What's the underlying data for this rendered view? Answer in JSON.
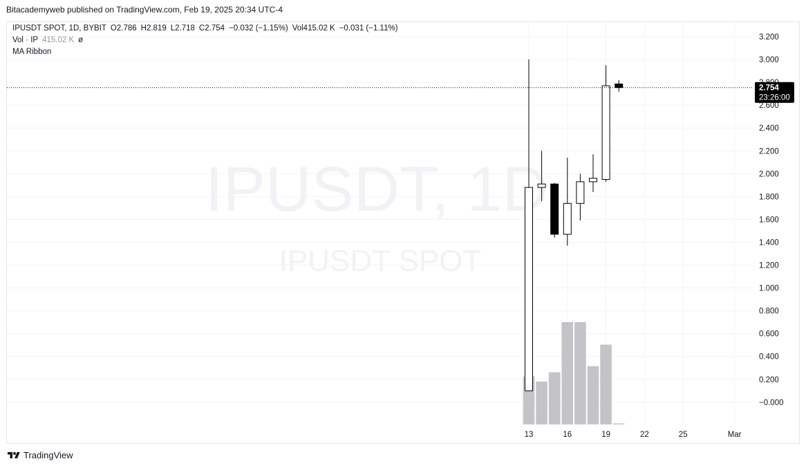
{
  "header": {
    "published": "Bitacademyweb published on TradingView.com, Feb 19, 2025 20:34 UTC-4"
  },
  "legend": {
    "symbol": "IPUSDT SPOT, 1D, BYBIT",
    "open": "O2.786",
    "high": "H2.819",
    "low": "L2.718",
    "close": "C2.754",
    "change": "−0.032 (−1.15%)",
    "volume": "Vol415.02 K",
    "vol_change": "−0.031 (−1.11%)",
    "vol_label": "Vol · IP",
    "vol_value": "415.02 K",
    "vol_symbol": "ø",
    "ma_ribbon": "MA Ribbon"
  },
  "watermark": {
    "main": "IPUSDT, 1D",
    "sub": "IPUSDT SPOT"
  },
  "price_label": {
    "value": "2.754",
    "countdown": "23:26:00"
  },
  "footer": {
    "brand": "TradingView"
  },
  "colors": {
    "up_fill": "#ffffff",
    "down_fill": "#000000",
    "candle_border": "#000000",
    "volume": "#c4c4c8",
    "grid": "#f0f3fa",
    "price_label_bg": "#000000"
  },
  "chart_data": {
    "type": "candlestick",
    "y_ticks": [
      "3.200",
      "3.000",
      "2.800",
      "2.600",
      "2.400",
      "2.200",
      "2.000",
      "1.800",
      "1.600",
      "1.400",
      "1.200",
      "1.000",
      "0.800",
      "0.600",
      "0.400",
      "0.200",
      "−0.000"
    ],
    "ylim": [
      -0.2,
      3.3
    ],
    "x_ticks": [
      {
        "label": "13",
        "day": 0
      },
      {
        "label": "16",
        "day": 3
      },
      {
        "label": "19",
        "day": 6
      },
      {
        "label": "22",
        "day": 9
      },
      {
        "label": "25",
        "day": 12
      },
      {
        "label": "Mar",
        "day": 16
      }
    ],
    "candles": [
      {
        "date": "2025-02-13",
        "open": 0.1,
        "high": 3.0,
        "low": 0.1,
        "close": 1.88
      },
      {
        "date": "2025-02-14",
        "open": 1.88,
        "high": 2.2,
        "low": 1.76,
        "close": 1.91
      },
      {
        "date": "2025-02-15",
        "open": 1.91,
        "high": 1.92,
        "low": 1.44,
        "close": 1.47
      },
      {
        "date": "2025-02-16",
        "open": 1.47,
        "high": 2.14,
        "low": 1.37,
        "close": 1.74
      },
      {
        "date": "2025-02-17",
        "open": 1.74,
        "high": 2.0,
        "low": 1.59,
        "close": 1.93
      },
      {
        "date": "2025-02-18",
        "open": 1.93,
        "high": 2.17,
        "low": 1.84,
        "close": 1.96
      },
      {
        "date": "2025-02-19",
        "open": 1.95,
        "high": 2.95,
        "low": 1.93,
        "close": 2.77
      },
      {
        "date": "2025-02-20",
        "open": 2.786,
        "high": 2.819,
        "low": 2.718,
        "close": 2.754
      }
    ],
    "volume_relative": [
      0.47,
      0.42,
      0.51,
      1.0,
      1.0,
      0.57,
      0.78,
      0.01
    ],
    "last_price": 2.754,
    "grid": true
  }
}
